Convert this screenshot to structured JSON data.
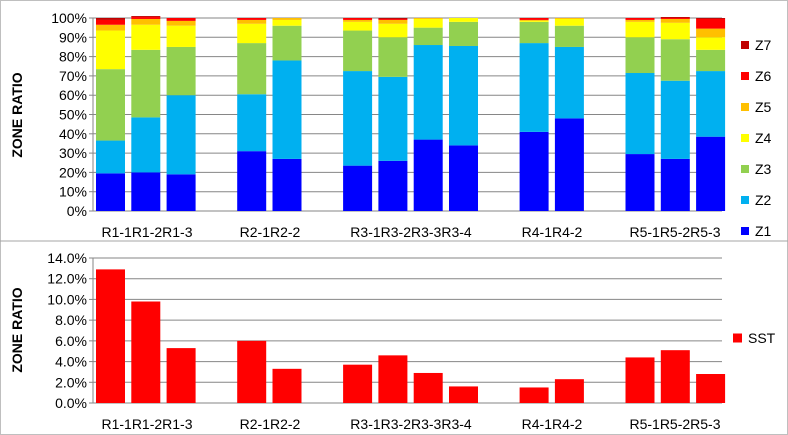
{
  "chart_data": [
    {
      "type": "bar",
      "stacked": true,
      "ylabel": "ZONE RATIO",
      "ylim": [
        0,
        100
      ],
      "yticks": [
        "0%",
        "10%",
        "20%",
        "30%",
        "40%",
        "50%",
        "60%",
        "70%",
        "80%",
        "90%",
        "100%"
      ],
      "grid": true,
      "legend_position": "right",
      "category_labels": [
        {
          "text": "R1-1R1-2R1-3"
        },
        {
          "text": "R2-1R2-2"
        },
        {
          "text": "R3-1R3-2R3-3R3-4"
        },
        {
          "text": "R4-1R4-2"
        },
        {
          "text": "R5-1R5-2R5-3"
        }
      ],
      "categories": [
        "R1-1",
        "R1-2",
        "R1-3",
        "",
        "R2-1",
        "R2-2",
        "",
        "R3-1",
        "R3-2",
        "R3-3",
        "R3-4",
        "",
        "R4-1",
        "R4-2",
        "",
        "R5-1",
        "R5-2",
        "R5-3"
      ],
      "series": [
        {
          "name": "Z1",
          "color": "#0000ff",
          "values": [
            19.5,
            20,
            19,
            null,
            31,
            27,
            null,
            23.5,
            26,
            37,
            34,
            null,
            41,
            48,
            null,
            29.5,
            27,
            38.5
          ]
        },
        {
          "name": "Z2",
          "color": "#00b0f0",
          "values": [
            17,
            28.5,
            41,
            null,
            29.5,
            51,
            null,
            49,
            43.5,
            49,
            51.5,
            null,
            46,
            37,
            null,
            42,
            40.5,
            34
          ]
        },
        {
          "name": "Z3",
          "color": "#92d050",
          "values": [
            37,
            35,
            25,
            null,
            26.5,
            18,
            null,
            21,
            20.5,
            9,
            12.5,
            null,
            11,
            11,
            null,
            18.5,
            21.5,
            11
          ]
        },
        {
          "name": "Z4",
          "color": "#ffff00",
          "values": [
            20,
            13,
            11,
            null,
            10,
            3,
            null,
            4.5,
            7,
            4.5,
            2,
            null,
            0.5,
            3.5,
            null,
            8,
            8.5,
            6.5
          ]
        },
        {
          "name": "Z5",
          "color": "#ffc000",
          "values": [
            3,
            3,
            2.5,
            null,
            2,
            1,
            null,
            1,
            2,
            0.5,
            0,
            null,
            0.5,
            0.5,
            null,
            1,
            2,
            4.5
          ]
        },
        {
          "name": "Z6",
          "color": "#ff0000",
          "values": [
            2.5,
            1,
            1.5,
            null,
            1,
            0,
            null,
            1,
            0.5,
            0,
            0,
            null,
            1,
            0,
            null,
            1,
            0.5,
            5
          ]
        },
        {
          "name": "Z7",
          "color": "#c00000",
          "values": [
            1,
            0.5,
            0,
            null,
            0,
            0,
            null,
            0,
            0.5,
            0,
            0,
            null,
            0,
            0,
            null,
            0,
            0.5,
            0.5
          ]
        }
      ],
      "legend_order": [
        "Z7",
        "Z6",
        "Z5",
        "Z4",
        "Z3",
        "Z2",
        "Z1"
      ]
    },
    {
      "type": "bar",
      "ylabel": "ZONE RATIO",
      "ylim": [
        0,
        14
      ],
      "yticks": [
        "0.0%",
        "2.0%",
        "4.0%",
        "6.0%",
        "8.0%",
        "10.0%",
        "12.0%",
        "14.0%"
      ],
      "grid": true,
      "legend_position": "right",
      "category_labels": [
        {
          "text": "R1-1R1-2R1-3"
        },
        {
          "text": "R2-1R2-2"
        },
        {
          "text": "R3-1R3-2R3-3R3-4"
        },
        {
          "text": "R4-1R4-2"
        },
        {
          "text": "R5-1R5-2R5-3"
        }
      ],
      "categories": [
        "R1-1",
        "R1-2",
        "R1-3",
        "",
        "R2-1",
        "R2-2",
        "",
        "R3-1",
        "R3-2",
        "R3-3",
        "R3-4",
        "",
        "R4-1",
        "R4-2",
        "",
        "R5-1",
        "R5-2",
        "R5-3"
      ],
      "series": [
        {
          "name": "SST",
          "color": "#ff0000",
          "values": [
            12.9,
            9.8,
            5.3,
            null,
            6.0,
            3.3,
            null,
            3.7,
            4.6,
            2.9,
            1.6,
            null,
            1.5,
            2.3,
            null,
            4.4,
            5.1,
            2.8
          ]
        }
      ]
    }
  ]
}
